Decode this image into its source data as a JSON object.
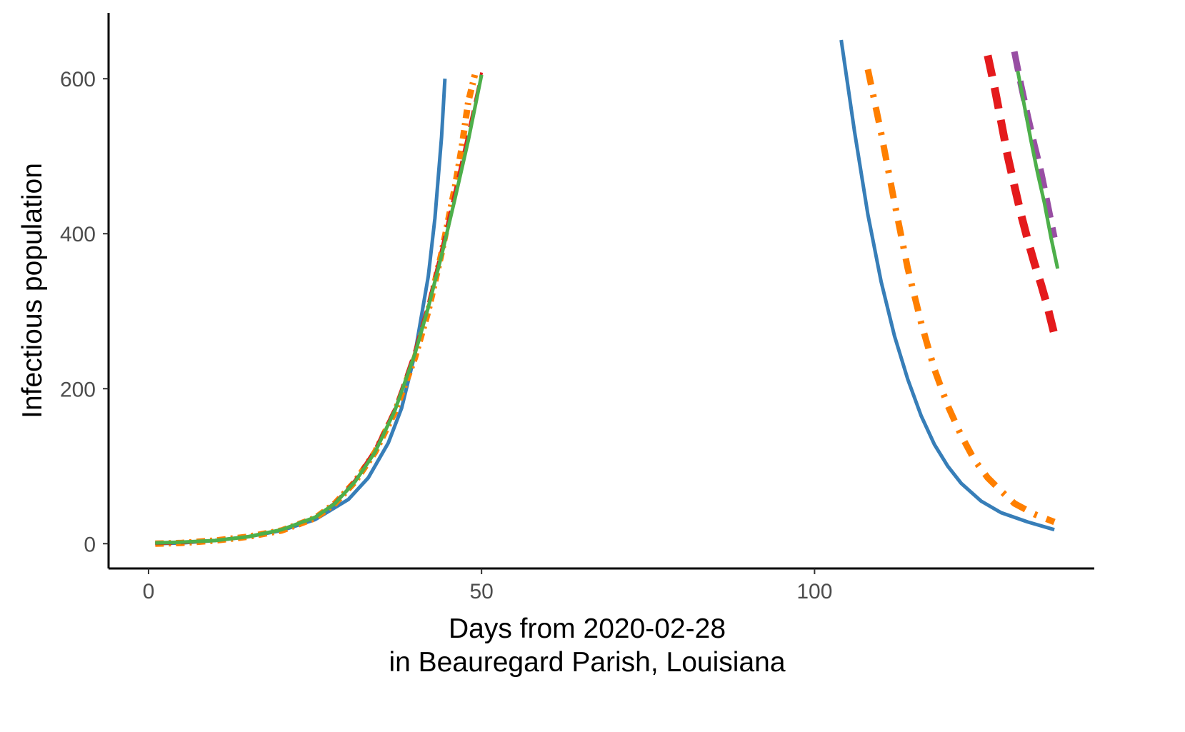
{
  "chart_data": {
    "type": "line",
    "title": "",
    "xlabel_lines": [
      "Days from 2020-02-28",
      "in Beauregard Parish, Louisiana"
    ],
    "ylabel": "Infectious population",
    "xlim": [
      -6,
      142
    ],
    "ylim": [
      -32,
      685
    ],
    "x_ticks": [
      0,
      50,
      100
    ],
    "y_ticks": [
      0,
      200,
      400,
      600
    ],
    "grid": false,
    "legend": "none",
    "series": [
      {
        "color": "#377eb8",
        "dash": "solid",
        "width": 5,
        "points": [
          [
            1,
            0
          ],
          [
            5,
            1
          ],
          [
            10,
            4
          ],
          [
            15,
            9
          ],
          [
            20,
            17
          ],
          [
            25,
            31
          ],
          [
            30,
            57
          ],
          [
            33,
            85
          ],
          [
            36,
            130
          ],
          [
            38,
            175
          ],
          [
            40,
            245
          ],
          [
            42,
            345
          ],
          [
            43,
            420
          ],
          [
            44,
            525
          ],
          [
            44.5,
            600
          ]
        ]
      },
      {
        "color": "#377eb8",
        "dash": "solid",
        "width": 5,
        "points": [
          [
            104,
            650
          ],
          [
            106,
            532
          ],
          [
            108,
            425
          ],
          [
            110,
            338
          ],
          [
            112,
            268
          ],
          [
            114,
            212
          ],
          [
            116,
            165
          ],
          [
            118,
            128
          ],
          [
            120,
            100
          ],
          [
            122,
            78
          ],
          [
            125,
            55
          ],
          [
            128,
            40
          ],
          [
            132,
            28
          ],
          [
            136,
            18
          ]
        ]
      },
      {
        "color": "#ff7f00",
        "dash": "12 7 3 7",
        "width": 9,
        "points": [
          [
            1,
            0
          ],
          [
            5,
            1
          ],
          [
            10,
            4
          ],
          [
            15,
            9
          ],
          [
            20,
            17
          ],
          [
            25,
            33
          ],
          [
            28,
            52
          ],
          [
            31,
            80
          ],
          [
            34,
            118
          ],
          [
            37,
            170
          ],
          [
            40,
            240
          ],
          [
            42,
            300
          ],
          [
            44,
            375
          ],
          [
            46,
            460
          ],
          [
            47,
            510
          ],
          [
            48,
            570
          ],
          [
            49,
            605
          ]
        ]
      },
      {
        "color": "#ff7f00",
        "dash": "22 14 4 14",
        "width": 9,
        "points": [
          [
            108,
            612
          ],
          [
            110,
            530
          ],
          [
            112,
            440
          ],
          [
            114,
            355
          ],
          [
            116,
            285
          ],
          [
            118,
            225
          ],
          [
            120,
            178
          ],
          [
            122,
            140
          ],
          [
            124,
            108
          ],
          [
            126,
            85
          ],
          [
            128,
            68
          ],
          [
            130,
            52
          ],
          [
            133,
            38
          ],
          [
            136,
            28
          ]
        ]
      },
      {
        "color": "#e41a1c",
        "dash": "24 12",
        "width": 4,
        "points": [
          [
            1,
            0
          ],
          [
            5,
            1
          ],
          [
            10,
            4
          ],
          [
            15,
            9
          ],
          [
            20,
            18
          ],
          [
            25,
            34
          ],
          [
            28,
            53
          ],
          [
            31,
            82
          ],
          [
            34,
            122
          ],
          [
            37,
            175
          ],
          [
            40,
            250
          ],
          [
            42,
            310
          ],
          [
            44,
            380
          ],
          [
            46,
            455
          ],
          [
            48,
            530
          ],
          [
            50,
            608
          ]
        ]
      },
      {
        "color": "#e41a1c",
        "dash": "30 16",
        "width": 11,
        "points": [
          [
            126,
            630
          ],
          [
            127,
            590
          ],
          [
            128,
            545
          ],
          [
            129,
            500
          ],
          [
            130,
            462
          ],
          [
            131,
            425
          ],
          [
            132,
            392
          ],
          [
            133,
            362
          ],
          [
            134,
            335
          ],
          [
            135,
            305
          ],
          [
            136,
            270
          ]
        ]
      },
      {
        "color": "#984ea3",
        "dash": "28 14",
        "width": 9,
        "points": [
          [
            130,
            635
          ],
          [
            131,
            592
          ],
          [
            132,
            552
          ],
          [
            133,
            515
          ],
          [
            134,
            480
          ],
          [
            135,
            438
          ],
          [
            136,
            395
          ]
        ]
      },
      {
        "color": "#4daf4a",
        "dash": "solid",
        "width": 5,
        "points": [
          [
            1,
            1
          ],
          [
            5,
            2
          ],
          [
            10,
            4
          ],
          [
            15,
            9
          ],
          [
            20,
            18
          ],
          [
            25,
            34
          ],
          [
            28,
            52
          ],
          [
            31,
            80
          ],
          [
            34,
            118
          ],
          [
            37,
            172
          ],
          [
            40,
            245
          ],
          [
            42,
            305
          ],
          [
            44,
            372
          ],
          [
            46,
            445
          ],
          [
            48,
            520
          ],
          [
            50,
            605
          ]
        ]
      },
      {
        "color": "#4daf4a",
        "dash": "solid",
        "width": 5,
        "points": [
          [
            130.5,
            610
          ],
          [
            131.5,
            565
          ],
          [
            132.5,
            520
          ],
          [
            133.5,
            478
          ],
          [
            134.5,
            440
          ],
          [
            135.5,
            395
          ],
          [
            136.5,
            355
          ]
        ]
      }
    ]
  }
}
